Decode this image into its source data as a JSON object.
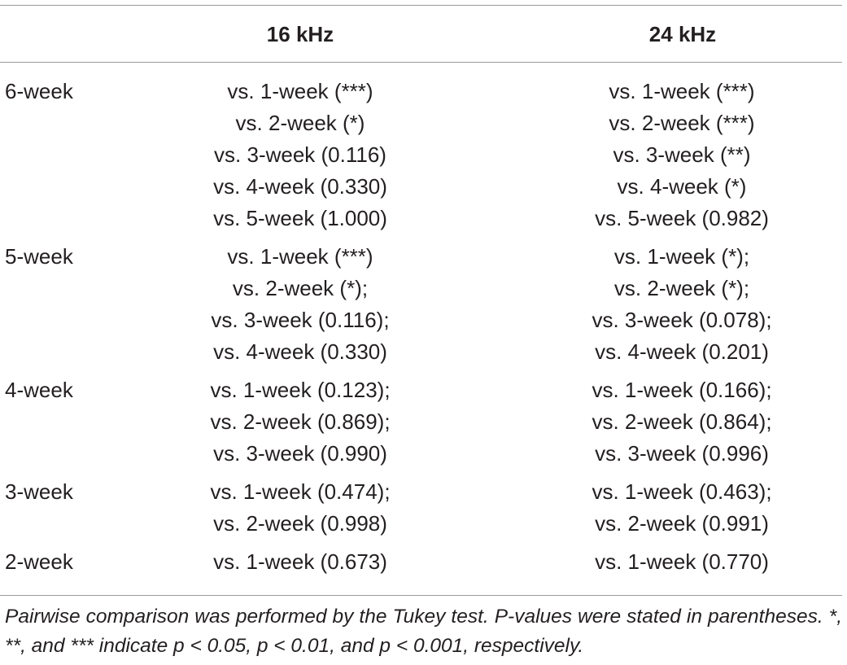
{
  "header": {
    "col1": "16 kHz",
    "col2": "24 kHz"
  },
  "groups": [
    {
      "label": "6-week",
      "col1": [
        "vs. 1-week (***)",
        "vs. 2-week (*)",
        "vs. 3-week (0.116)",
        "vs. 4-week (0.330)",
        "vs. 5-week (1.000)"
      ],
      "col2": [
        "vs. 1-week (***)",
        "vs. 2-week (***)",
        "vs. 3-week (**)",
        "vs. 4-week (*)",
        "vs. 5-week (0.982)"
      ]
    },
    {
      "label": "5-week",
      "col1": [
        "vs. 1-week (***)",
        "vs. 2-week (*);",
        "vs. 3-week (0.116);",
        "vs. 4-week (0.330)"
      ],
      "col2": [
        "vs. 1-week (*);",
        "vs. 2-week (*);",
        "vs. 3-week (0.078);",
        "vs. 4-week (0.201)"
      ]
    },
    {
      "label": "4-week",
      "col1": [
        "vs. 1-week (0.123);",
        "vs. 2-week (0.869);",
        "vs. 3-week (0.990)"
      ],
      "col2": [
        "vs. 1-week (0.166);",
        "vs. 2-week (0.864);",
        "vs. 3-week (0.996)"
      ]
    },
    {
      "label": "3-week",
      "col1": [
        "vs. 1-week (0.474);",
        "vs. 2-week (0.998)"
      ],
      "col2": [
        "vs. 1-week (0.463);",
        "vs. 2-week (0.991)"
      ]
    },
    {
      "label": "2-week",
      "col1": [
        "vs. 1-week (0.673)"
      ],
      "col2": [
        "vs. 1-week (0.770)"
      ]
    }
  ],
  "footnote": "Pairwise comparison was performed by the Tukey test. P-values were stated in parentheses. *, **, and *** indicate p < 0.05, p < 0.01, and p < 0.001, respectively."
}
